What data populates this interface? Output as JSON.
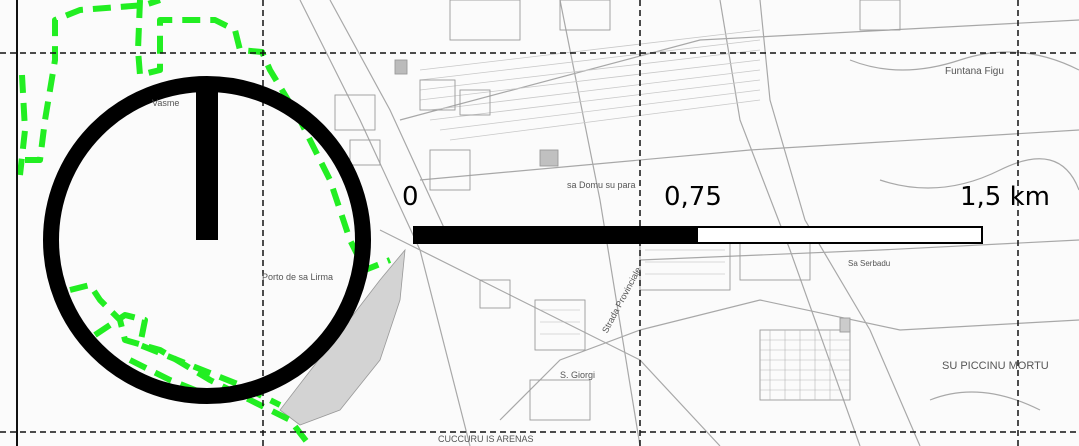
{
  "colors": {
    "background": "#fbfbfb",
    "grid": "#111111",
    "boundary": "#22ee22",
    "symbol": "#000000",
    "streets": "#aaaaaa",
    "water": "#d3d3d3"
  },
  "icons": {
    "north_arrow": "north-arrow-circle-icon"
  },
  "scale_bar": {
    "labels": [
      "0",
      "0,75",
      "1,5 km"
    ],
    "filled_fraction": 0.5
  },
  "place_labels": {
    "funtana": "Funtana Figu",
    "domu": "sa Domu su para",
    "sabbadu": "Sa Serbadu",
    "porto": "Porto de sa Lirma",
    "piccinu": "SU PICCINU MORTU",
    "cuccuru": "CUCCURU IS ARENAS",
    "giorgi": "S. Giorgi",
    "vasme": "Vasme",
    "strada": "Strada Provinciale"
  }
}
